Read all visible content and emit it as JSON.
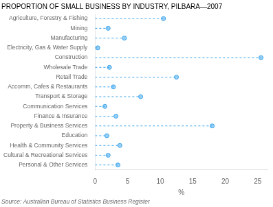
{
  "chart_data": {
    "type": "dot",
    "title": "PROPORTION OF SMALL BUSINESS BY INDUSTRY, PILBARA—2007",
    "annotation": "Source: Australian Bureau of Statistics Business Register",
    "xlabel": "%",
    "orientation": "horizontal",
    "categories": [
      "Agriculture, Forestry & Fishing",
      "Mining",
      "Manufacturing",
      "Electricity, Gas & Water Supply",
      "Construction",
      "Wholesale Trade",
      "Retail Trade",
      "Accomm, Cafes & Restaurants",
      "Transport & Storage",
      "Communication Services",
      "Finance & Insurance",
      "Property & Business Services",
      "Education",
      "Health & Community Services",
      "Cultural & Recreational Services",
      "Personal & Other Services"
    ],
    "values": [
      10.5,
      2.0,
      4.5,
      0.4,
      25.5,
      2.2,
      12.5,
      2.8,
      7.0,
      1.5,
      3.2,
      18.0,
      1.8,
      3.8,
      2.0,
      3.5
    ],
    "xlim": [
      0,
      26.5
    ],
    "xticks": [
      0,
      5,
      10,
      15,
      20,
      25
    ],
    "marker": "circle",
    "line_style": "dashed",
    "grid": false
  }
}
